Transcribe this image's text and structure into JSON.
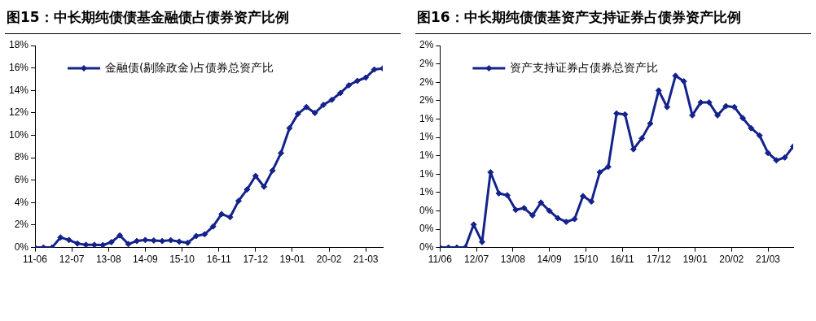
{
  "chart_data": [
    {
      "type": "line",
      "title": "图15：中长期纯债债基金融债占债券资产比例",
      "x": [
        "2011-06",
        "2011-09",
        "2011-12",
        "2012-03",
        "2012-06",
        "2012-09",
        "2012-12",
        "2013-03",
        "2013-06",
        "2013-09",
        "2013-12",
        "2014-03",
        "2014-06",
        "2014-09",
        "2014-12",
        "2015-03",
        "2015-06",
        "2015-09",
        "2015-12",
        "2016-03",
        "2016-06",
        "2016-09",
        "2016-12",
        "2017-03",
        "2017-06",
        "2017-09",
        "2017-12",
        "2018-03",
        "2018-06",
        "2018-09",
        "2018-12",
        "2019-03",
        "2019-06",
        "2019-09",
        "2019-12",
        "2020-03",
        "2020-06",
        "2020-09",
        "2020-12",
        "2021-03",
        "2021-06",
        "2021-09"
      ],
      "series": [
        {
          "name": "金融债(剔除政金)占债券总资产比",
          "color": "#14238c",
          "values": [
            0,
            0,
            0,
            0.9,
            0.67,
            0.36,
            0.24,
            0.24,
            0.22,
            0.48,
            1.08,
            0.31,
            0.58,
            0.67,
            0.63,
            0.58,
            0.65,
            0.53,
            0.43,
            1.03,
            1.18,
            1.88,
            2.98,
            2.7,
            4.16,
            5.17,
            6.38,
            5.42,
            6.86,
            8.42,
            10.64,
            11.91,
            12.52,
            11.99,
            12.71,
            13.17,
            13.77,
            14.46,
            14.85,
            15.14,
            15.86,
            15.96
          ]
        }
      ],
      "xlim": [
        "2011-06",
        "2021-09"
      ],
      "xticks": [
        {
          "value": "2011-06",
          "label": "11-06"
        },
        {
          "value": "2012-07",
          "label": "12-07"
        },
        {
          "value": "2013-08",
          "label": "13-08"
        },
        {
          "value": "2014-09",
          "label": "14-09"
        },
        {
          "value": "2015-10",
          "label": "15-10"
        },
        {
          "value": "2016-11",
          "label": "16-11"
        },
        {
          "value": "2017-12",
          "label": "17-12"
        },
        {
          "value": "2019-01",
          "label": "19-01"
        },
        {
          "value": "2020-02",
          "label": "20-02"
        },
        {
          "value": "2021-03",
          "label": "21-03"
        }
      ],
      "ylim": [
        0,
        18
      ],
      "yticks": [
        {
          "value": 0,
          "label": "0%"
        },
        {
          "value": 2,
          "label": "2%"
        },
        {
          "value": 4,
          "label": "4%"
        },
        {
          "value": 6,
          "label": "6%"
        },
        {
          "value": 8,
          "label": "8%"
        },
        {
          "value": 10,
          "label": "10%"
        },
        {
          "value": 12,
          "label": "12%"
        },
        {
          "value": 14,
          "label": "14%"
        },
        {
          "value": 16,
          "label": "16%"
        },
        {
          "value": 18,
          "label": "18%"
        }
      ],
      "grid": false,
      "legend": "top left",
      "marker": "diamond",
      "line_style": "solid"
    },
    {
      "type": "line",
      "title": "图16：中长期纯债债基资产支持证券占债券资产比例",
      "x": [
        "2011-06",
        "2011-09",
        "2011-12",
        "2012-03",
        "2012-06",
        "2012-09",
        "2012-12",
        "2013-03",
        "2013-06",
        "2013-09",
        "2013-12",
        "2014-03",
        "2014-06",
        "2014-09",
        "2014-12",
        "2015-03",
        "2015-06",
        "2015-09",
        "2015-12",
        "2016-03",
        "2016-06",
        "2016-09",
        "2016-12",
        "2017-03",
        "2017-06",
        "2017-09",
        "2017-12",
        "2018-03",
        "2018-06",
        "2018-09",
        "2018-12",
        "2019-03",
        "2019-06",
        "2019-09",
        "2019-12",
        "2020-03",
        "2020-06",
        "2020-09",
        "2020-12",
        "2021-03",
        "2021-06",
        "2021-09",
        "2021-12"
      ],
      "series": [
        {
          "name": "资产支持证券占债券总资产比",
          "color": "#14238c",
          "values": [
            0,
            0,
            0,
            0,
            0.25,
            0.06,
            0.82,
            0.59,
            0.57,
            0.41,
            0.43,
            0.35,
            0.49,
            0.4,
            0.32,
            0.28,
            0.31,
            0.56,
            0.5,
            0.82,
            0.88,
            1.46,
            1.45,
            1.07,
            1.19,
            1.35,
            1.71,
            1.53,
            1.87,
            1.81,
            1.44,
            1.58,
            1.58,
            1.44,
            1.54,
            1.53,
            1.41,
            1.3,
            1.22,
            1.03,
            0.95,
            0.98,
            1.1
          ]
        }
      ],
      "xlim": [
        "2011-06",
        "2021-12"
      ],
      "xticks": [
        {
          "value": "2011-06",
          "label": "11/06"
        },
        {
          "value": "2012-07",
          "label": "12/07"
        },
        {
          "value": "2013-08",
          "label": "13/08"
        },
        {
          "value": "2014-09",
          "label": "14/09"
        },
        {
          "value": "2015-10",
          "label": "15/10"
        },
        {
          "value": "2016-11",
          "label": "16/11"
        },
        {
          "value": "2017-12",
          "label": "17/12"
        },
        {
          "value": "2019-01",
          "label": "19/01"
        },
        {
          "value": "2020-02",
          "label": "20/02"
        },
        {
          "value": "2021-03",
          "label": "21/03"
        }
      ],
      "ylim": [
        0,
        2.2
      ],
      "yticks": [
        {
          "value": 0,
          "label": "0%"
        },
        {
          "value": 0.2,
          "label": "0%"
        },
        {
          "value": 0.4,
          "label": "0%"
        },
        {
          "value": 0.6,
          "label": "1%"
        },
        {
          "value": 0.8,
          "label": "1%"
        },
        {
          "value": 1.0,
          "label": "1%"
        },
        {
          "value": 1.2,
          "label": "1%"
        },
        {
          "value": 1.4,
          "label": "1%"
        },
        {
          "value": 1.6,
          "label": "2%"
        },
        {
          "value": 1.8,
          "label": "2%"
        },
        {
          "value": 2.0,
          "label": "2%"
        },
        {
          "value": 2.2,
          "label": "2%"
        }
      ],
      "grid": false,
      "legend": "top left",
      "marker": "diamond",
      "line_style": "solid"
    }
  ]
}
